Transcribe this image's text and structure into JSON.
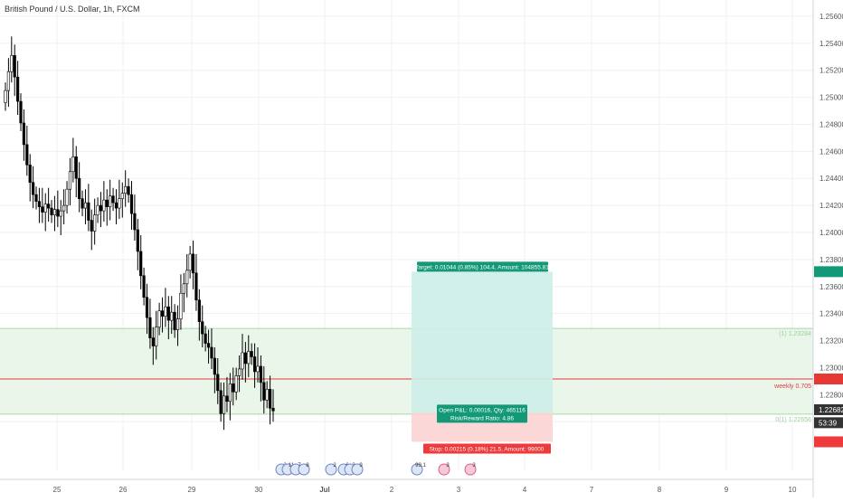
{
  "header": {
    "title": "British Pound / U.S. Dollar, 1h, FXCM"
  },
  "colors": {
    "up": "#000000",
    "down": "#000000",
    "grid": "#eef0f3",
    "target_zone": "#cdeee8",
    "stop_zone": "#fbd3d3",
    "support_zone": "#e6f5e6",
    "target_label": "#139977",
    "stop_label": "#ee3a3a",
    "weekly_line": "#e53935",
    "axis_text": "#555555"
  },
  "chart_data": {
    "type": "candlestick",
    "title": "British Pound / U.S. Dollar, 1h, FXCM",
    "ylim": [
      1.2224,
      1.2572
    ],
    "x_ticks": [
      "25",
      "26",
      "29",
      "30",
      "Jul",
      "2",
      "3",
      "4",
      "7",
      "8",
      "9",
      "10"
    ],
    "y_ticks": [
      "1.25600",
      "1.25400",
      "1.25200",
      "1.25000",
      "1.24800",
      "1.24600",
      "1.24400",
      "1.24200",
      "1.24000",
      "1.23800",
      "1.23600",
      "1.23400",
      "1.23200",
      "1.23000",
      "1.22800",
      "1.22600"
    ],
    "closes": [
      1.2505,
      1.2519,
      1.2531,
      1.2515,
      1.2497,
      1.2481,
      1.2465,
      1.245,
      1.2437,
      1.2428,
      1.2423,
      1.2419,
      1.2415,
      1.2421,
      1.2418,
      1.2413,
      1.2417,
      1.2412,
      1.2416,
      1.242,
      1.2432,
      1.2445,
      1.2456,
      1.244,
      1.2425,
      1.2418,
      1.2422,
      1.2409,
      1.2401,
      1.2413,
      1.242,
      1.2416,
      1.2424,
      1.2419,
      1.2427,
      1.2422,
      1.2418,
      1.2425,
      1.2429,
      1.2434,
      1.2428,
      1.2414,
      1.2402,
      1.2386,
      1.2368,
      1.2352,
      1.2337,
      1.2322,
      1.2316,
      1.233,
      1.2342,
      1.2338,
      1.2345,
      1.2335,
      1.2341,
      1.2328,
      1.2336,
      1.2355,
      1.2362,
      1.2372,
      1.2384,
      1.237,
      1.235,
      1.2334,
      1.2325,
      1.2318,
      1.2315,
      1.2307,
      1.2295,
      1.2283,
      1.2266,
      1.2279,
      1.2275,
      1.2288,
      1.2282,
      1.2294,
      1.2299,
      1.2311,
      1.2303,
      1.2312,
      1.2308,
      1.2297,
      1.2301,
      1.2289,
      1.2276,
      1.2284,
      1.227,
      1.2268
    ],
    "opens": [
      1.2496,
      1.2505,
      1.2519,
      1.2531,
      1.2515,
      1.2497,
      1.2481,
      1.2465,
      1.245,
      1.2437,
      1.2428,
      1.2423,
      1.2419,
      1.2415,
      1.2421,
      1.2418,
      1.2413,
      1.2417,
      1.2412,
      1.2416,
      1.242,
      1.2432,
      1.2445,
      1.2456,
      1.244,
      1.2425,
      1.2418,
      1.2422,
      1.2409,
      1.2401,
      1.2413,
      1.242,
      1.2416,
      1.2424,
      1.2419,
      1.2427,
      1.2422,
      1.2418,
      1.2425,
      1.2429,
      1.2434,
      1.2428,
      1.2414,
      1.2402,
      1.2386,
      1.2368,
      1.2352,
      1.2337,
      1.2322,
      1.2316,
      1.233,
      1.2342,
      1.2338,
      1.2345,
      1.2335,
      1.2341,
      1.2328,
      1.2336,
      1.2355,
      1.2362,
      1.2372,
      1.2384,
      1.237,
      1.235,
      1.2334,
      1.2325,
      1.2318,
      1.2315,
      1.2307,
      1.2295,
      1.2283,
      1.2266,
      1.2279,
      1.2275,
      1.2288,
      1.2282,
      1.2294,
      1.2299,
      1.2311,
      1.2303,
      1.2312,
      1.2308,
      1.2297,
      1.2301,
      1.2289,
      1.2276,
      1.2284,
      1.227
    ],
    "grid": true,
    "position_tool": {
      "target_price": 1.2371,
      "entry_price": 1.22666,
      "stop_price": 1.22451,
      "target_label": "Target: 0.01044 (0.85%) 104.4, Amount: 104855.81",
      "pnl_label": "Open P&L: 0.00016, Qty: 465116",
      "rr_label": "Risk/Reward Ratio: 4.86",
      "stop_label": "Stop: 0.00215 (0.18%) 21.5, Amount: 99000"
    },
    "support_zone": {
      "top": 1.2329,
      "bottom": 1.22656,
      "top_label": "(1) 1.23284",
      "bottom_label": "0(1) 1.22656"
    },
    "weekly_line": {
      "price": 1.22916,
      "label": "weekly 0.705"
    },
    "price_labels": [
      {
        "price": 1.2371,
        "text": "1.23710",
        "color": "#139977"
      },
      {
        "price": 1.22916,
        "text": "1.22916",
        "color": "#e53935"
      },
      {
        "price": 1.22682,
        "text": "1.22682",
        "color": "#ffffff"
      },
      {
        "price": 1.22666,
        "text": "53:39",
        "color": "#ffffff"
      },
      {
        "price": 1.22645,
        "text": "1.22666",
        "color": "#555555"
      },
      {
        "price": 1.22451,
        "text": "1.22451",
        "color": "#ee3a3a"
      }
    ],
    "events": [
      {
        "label": "2",
        "kind": "us"
      },
      {
        "label": "11",
        "kind": "us"
      },
      {
        "label": "7",
        "kind": "us"
      },
      {
        "label": "8",
        "kind": "us"
      },
      {
        "label": "2",
        "kind": "us"
      },
      {
        "label": "6",
        "kind": "us"
      },
      {
        "label": "3",
        "kind": "us"
      },
      {
        "label": "9",
        "kind": "us"
      },
      {
        "label": "99.1",
        "kind": "us"
      },
      {
        "label": "3",
        "kind": "pink"
      },
      {
        "label": "3",
        "kind": "pink"
      }
    ]
  }
}
